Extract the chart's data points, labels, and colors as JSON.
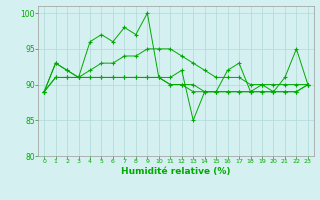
{
  "background_color": "#d5f0f0",
  "grid_color": "#b0d8d8",
  "line_color": "#00aa00",
  "xlabel": "Humidité relative (%)",
  "xlabel_color": "#00aa00",
  "tick_color": "#00aa00",
  "ylim": [
    80,
    101
  ],
  "xlim": [
    -0.5,
    23.5
  ],
  "yticks": [
    80,
    85,
    90,
    95,
    100
  ],
  "xticks": [
    0,
    1,
    2,
    3,
    4,
    5,
    6,
    7,
    8,
    9,
    10,
    11,
    12,
    13,
    14,
    15,
    16,
    17,
    18,
    19,
    20,
    21,
    22,
    23
  ],
  "series": [
    [
      89,
      93,
      92,
      91,
      96,
      97,
      96,
      98,
      97,
      100,
      91,
      91,
      92,
      85,
      89,
      89,
      92,
      93,
      89,
      90,
      89,
      91,
      95,
      90
    ],
    [
      89,
      93,
      92,
      91,
      91,
      91,
      91,
      91,
      91,
      91,
      91,
      90,
      90,
      90,
      89,
      89,
      89,
      89,
      89,
      89,
      89,
      89,
      89,
      90
    ],
    [
      89,
      91,
      91,
      91,
      92,
      93,
      93,
      94,
      94,
      95,
      95,
      95,
      94,
      93,
      92,
      91,
      91,
      91,
      90,
      90,
      90,
      90,
      90,
      90
    ],
    [
      89,
      91,
      91,
      91,
      91,
      91,
      91,
      91,
      91,
      91,
      91,
      90,
      90,
      89,
      89,
      89,
      89,
      89,
      89,
      89,
      89,
      89,
      89,
      90
    ]
  ]
}
